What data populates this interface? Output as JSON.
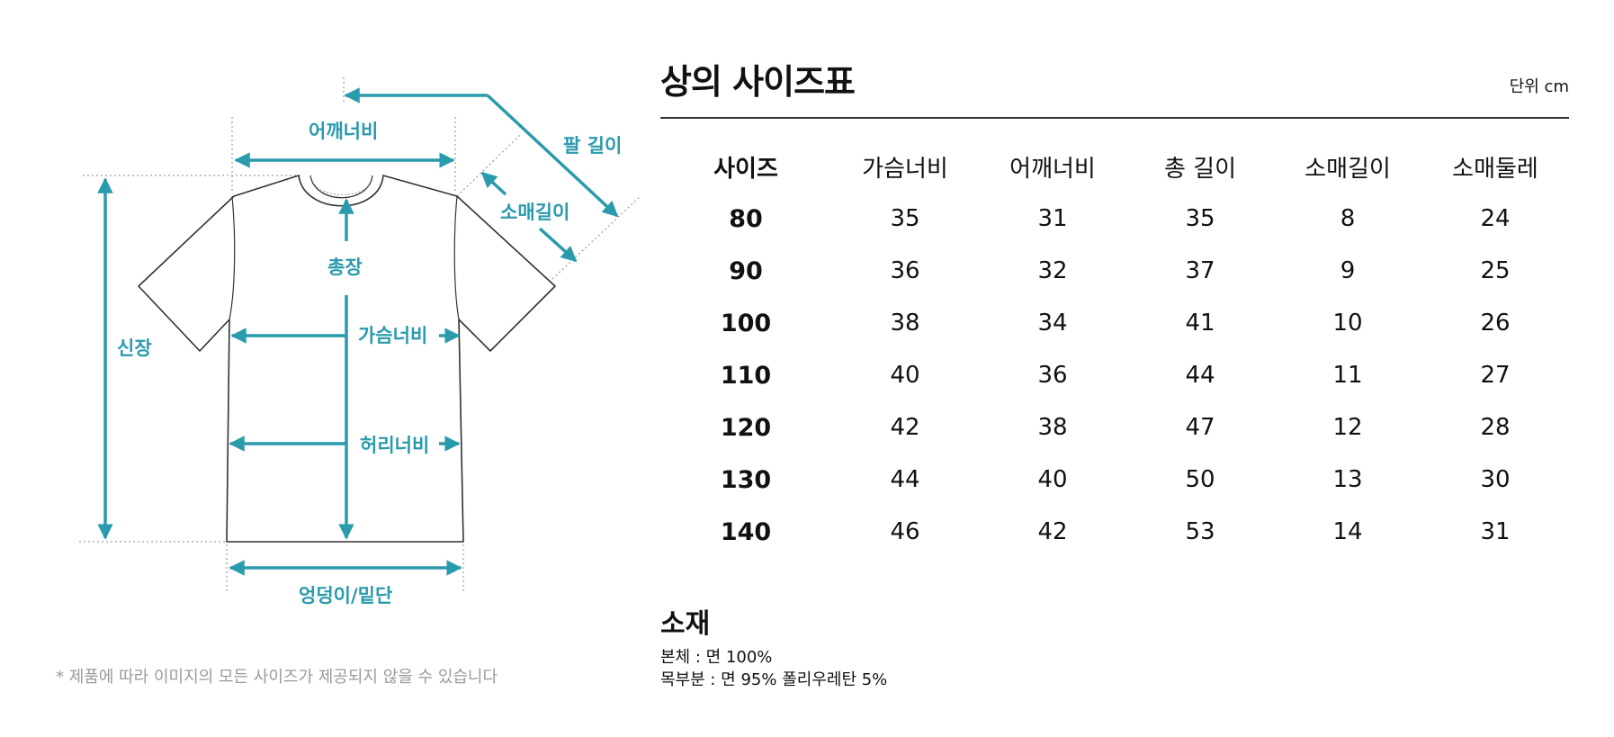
{
  "diagram": {
    "labels": {
      "shoulder": "어깨너비",
      "arm_length": "팔 길이",
      "sleeve_length": "소매길이",
      "total_length": "총장",
      "height": "신장",
      "chest": "가슴너비",
      "waist": "허리너비",
      "hem": "엉덩이/밑단"
    },
    "accent_color": "#2a9aad",
    "note": "* 제품에 따라 이미지의 모든 사이즈가 제공되지 않을 수 있습니다"
  },
  "table": {
    "title": "상의 사이즈표",
    "unit": "단위 cm",
    "headers": [
      "사이즈",
      "가슴너비",
      "어깨너비",
      "총 길이",
      "소매길이",
      "소매둘레"
    ],
    "rows": [
      [
        "80",
        "35",
        "31",
        "35",
        "8",
        "24"
      ],
      [
        "90",
        "36",
        "32",
        "37",
        "9",
        "25"
      ],
      [
        "100",
        "38",
        "34",
        "41",
        "10",
        "26"
      ],
      [
        "110",
        "40",
        "36",
        "44",
        "11",
        "27"
      ],
      [
        "120",
        "42",
        "38",
        "47",
        "12",
        "28"
      ],
      [
        "130",
        "44",
        "40",
        "50",
        "13",
        "30"
      ],
      [
        "140",
        "46",
        "42",
        "53",
        "14",
        "31"
      ]
    ]
  },
  "material": {
    "title": "소재",
    "lines": [
      "본체 : 면 100%",
      "목부분 : 면 95% 폴리우레탄 5%"
    ]
  }
}
